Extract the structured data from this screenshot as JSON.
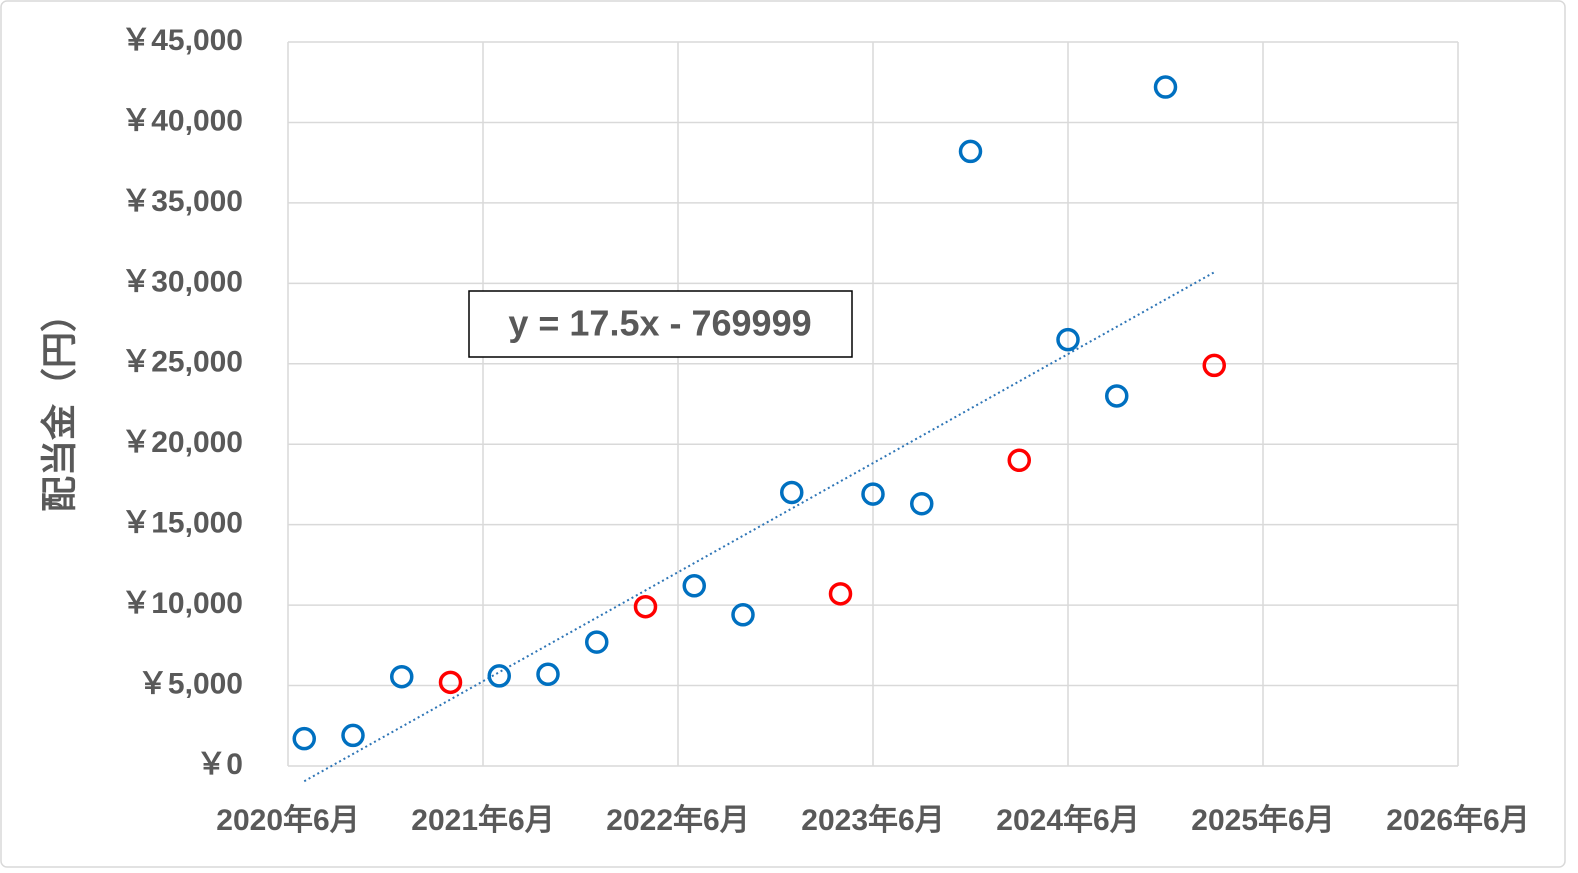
{
  "chart_data": {
    "type": "scatter",
    "y_label": "配当金（円）",
    "annotation": "y = 17.5x - 769999",
    "grid": true,
    "xlim": [
      "2020-06",
      "2026-06"
    ],
    "xticks": [
      {
        "value": "2020-06",
        "label": "2020年6月"
      },
      {
        "value": "2021-06",
        "label": "2021年6月"
      },
      {
        "value": "2022-06",
        "label": "2022年6月"
      },
      {
        "value": "2023-06",
        "label": "2023年6月"
      },
      {
        "value": "2024-06",
        "label": "2024年6月"
      },
      {
        "value": "2025-06",
        "label": "2025年6月"
      },
      {
        "value": "2026-06",
        "label": "2026年6月"
      }
    ],
    "ylim": [
      0,
      45000
    ],
    "yticks": [
      {
        "value": 0,
        "label": "￥0"
      },
      {
        "value": 5000,
        "label": "￥5,000"
      },
      {
        "value": 10000,
        "label": "￥10,000"
      },
      {
        "value": 15000,
        "label": "￥15,000"
      },
      {
        "value": 20000,
        "label": "￥20,000"
      },
      {
        "value": 25000,
        "label": "￥25,000"
      },
      {
        "value": 30000,
        "label": "￥30,000"
      },
      {
        "value": 35000,
        "label": "￥35,000"
      },
      {
        "value": 40000,
        "label": "￥40,000"
      },
      {
        "value": 45000,
        "label": "￥45,000"
      }
    ],
    "trendline_color": "#2e75b6",
    "series": [
      {
        "color": "#0070c0",
        "x": [
          "2020-07",
          "2020-10",
          "2021-01",
          "2021-07",
          "2021-10",
          "2022-01",
          "2022-07",
          "2022-10",
          "2023-01",
          "2023-06",
          "2023-09",
          "2023-12",
          "2024-06",
          "2024-09",
          "2024-12"
        ],
        "values": [
          1700,
          1900,
          5550,
          5600,
          5700,
          7700,
          11200,
          9400,
          17000,
          16900,
          16300,
          38200,
          26500,
          23000,
          42200
        ]
      },
      {
        "color": "#ff0000",
        "x": [
          "2021-04",
          "2022-04",
          "2023-04",
          "2024-03",
          "2025-03"
        ],
        "values": [
          5200,
          9900,
          10700,
          19000,
          24900
        ]
      }
    ]
  }
}
